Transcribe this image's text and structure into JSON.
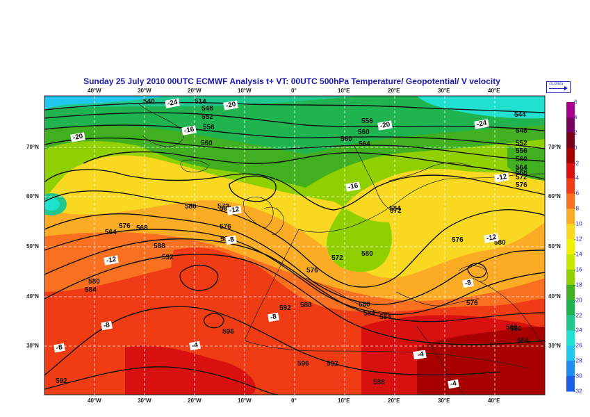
{
  "header": {
    "title": "Sunday 25 July 2010 00UTC ECMWF  Analysis t+  VT:     00UTC 500hPa Temperature/  Geopotential/  V velocity"
  },
  "wind_key": {
    "label": "75.0m/s"
  },
  "axes": {
    "lon_labels": [
      "40°W",
      "30°W",
      "20°W",
      "10°W",
      "0°",
      "10°E",
      "20°E",
      "30°E",
      "40°E"
    ],
    "lat_labels": [
      "70°N",
      "60°N",
      "50°N",
      "40°N",
      "30°N"
    ]
  },
  "legend": {
    "labels": [
      "6",
      "4",
      "2",
      "0",
      "-2",
      "-4",
      "-6",
      "-8",
      "-10",
      "-12",
      "-14",
      "-16",
      "-18",
      "-20",
      "-22",
      "-24",
      "-26",
      "-28",
      "-30",
      "-32"
    ],
    "colors": [
      "#a8008c",
      "#7a0060",
      "#780018",
      "#a80000",
      "#d81010",
      "#f03c14",
      "#f87020",
      "#fcac24",
      "#f8d820",
      "#f0f008",
      "#c8e800",
      "#90d000",
      "#40b020",
      "#20b450",
      "#20c890",
      "#20e0d0",
      "#20c8f0",
      "#208cf0",
      "#1c5ce8"
    ]
  },
  "map": {
    "contour_labels": [
      "540",
      "514",
      "548",
      "552",
      "556",
      "560",
      "556",
      "560",
      "564",
      "544",
      "548",
      "552",
      "556",
      "560",
      "564",
      "568",
      "572",
      "576",
      "580",
      "572",
      "568",
      "576",
      "584",
      "588",
      "592",
      "564",
      "576",
      "580",
      "584",
      "580",
      "584",
      "592",
      "588",
      "584",
      "576",
      "580",
      "592",
      "596",
      "592",
      "588",
      "572",
      "580",
      "584",
      "560",
      "576",
      "580",
      "572",
      "568",
      "576",
      "596",
      "580",
      "584"
    ],
    "temp_labels": [
      "-24",
      "-20",
      "-20",
      "-16",
      "-20",
      "-24",
      "-16",
      "-12",
      "-12",
      "-12",
      "-12",
      "-8",
      "-8",
      "-8",
      "-8",
      "-8",
      "-8",
      "-4",
      "-4",
      "-4"
    ]
  }
}
